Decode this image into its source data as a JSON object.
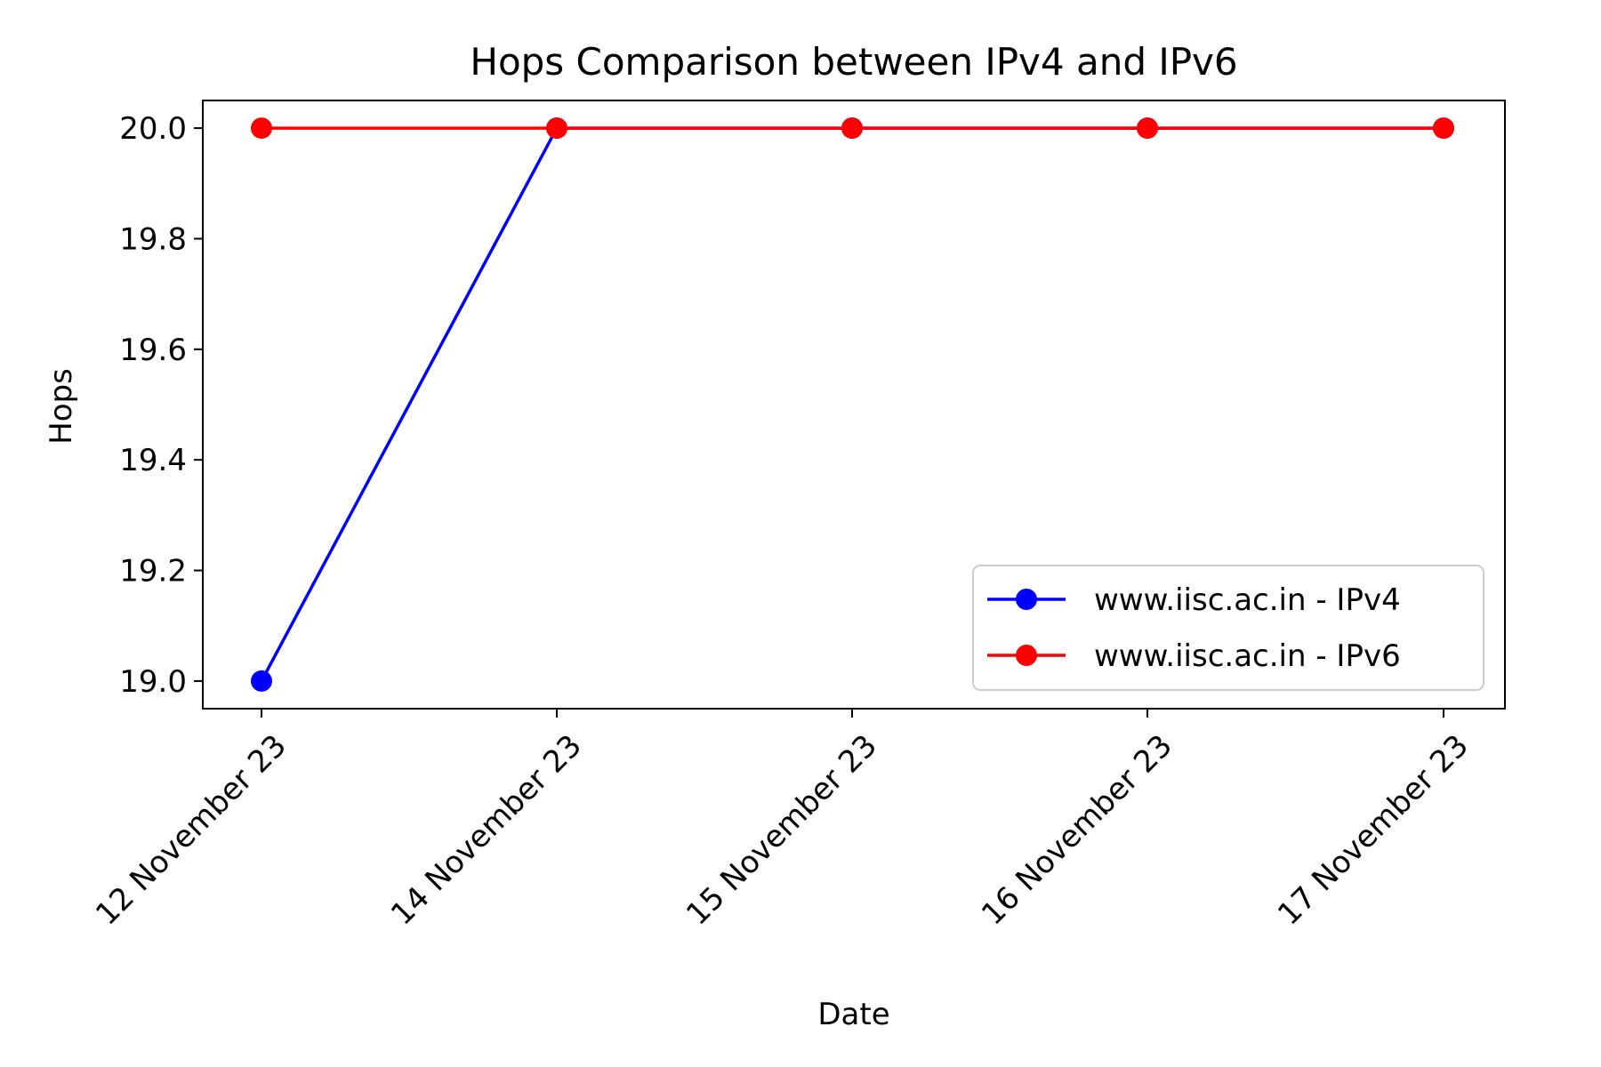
{
  "chart_data": {
    "type": "line",
    "title": "Hops Comparison between IPv4 and IPv6",
    "xlabel": "Date",
    "ylabel": "Hops",
    "categories": [
      "12 November 23",
      "14 November 23",
      "15 November 23",
      "16 November 23",
      "17 November 23"
    ],
    "ylim": [
      18.95,
      20.05
    ],
    "yticks": [
      "19.0",
      "19.2",
      "19.4",
      "19.6",
      "19.8",
      "20.0"
    ],
    "grid": false,
    "legend_position": "lower-right",
    "series": [
      {
        "name": "www.iisc.ac.in - IPv4",
        "color": "#0000ff",
        "marker": "circle",
        "values": [
          19,
          20,
          20,
          20,
          20
        ]
      },
      {
        "name": "www.iisc.ac.in - IPv6",
        "color": "#ff0000",
        "marker": "circle",
        "values": [
          20,
          20,
          20,
          20,
          20
        ]
      }
    ]
  }
}
